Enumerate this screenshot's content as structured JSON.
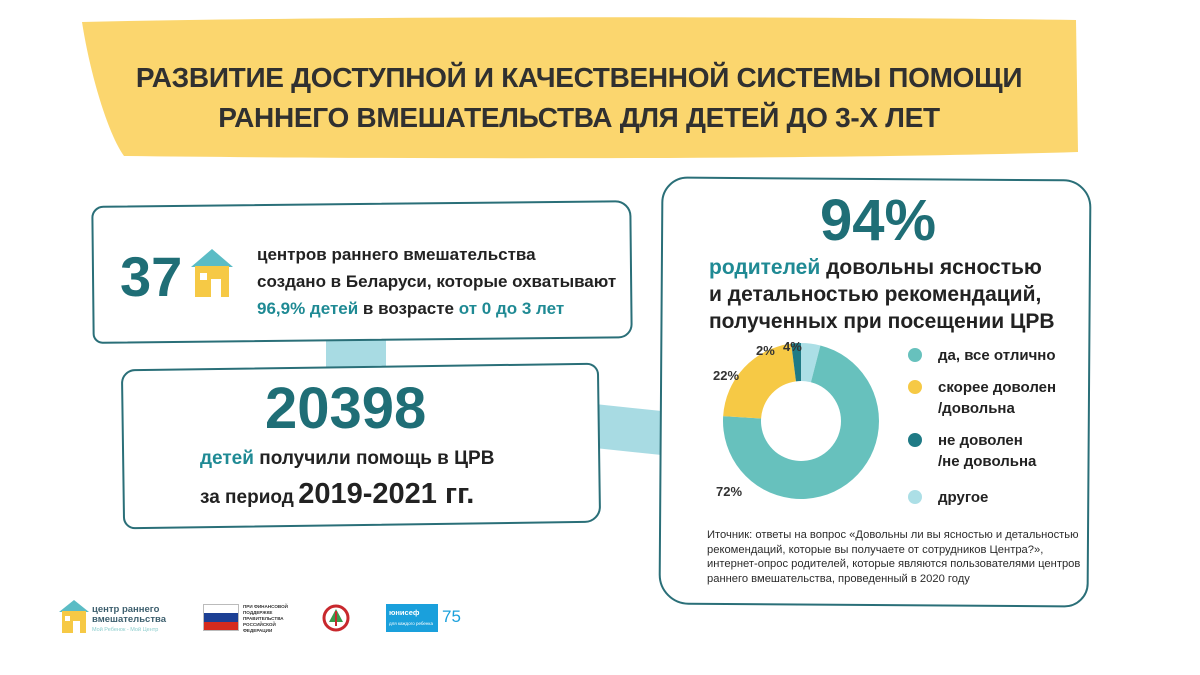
{
  "header": {
    "title_line1": "РАЗВИТИЕ ДОСТУПНОЙ И КАЧЕСТВЕННОЙ СИСТЕМЫ ПОМОЩИ",
    "title_line2": "РАННЕГО ВМЕШАТЕЛЬСТВА ДЛЯ ДЕТЕЙ ДО 3-Х ЛЕТ"
  },
  "stat_centers": {
    "number": "37",
    "line1": "центров раннего вмешательства",
    "line2": "создано в Беларуси, которые охватывают",
    "percent_children": "96,9% детей",
    "in_age": "в возрасте",
    "age_range": "от 0 до 3 лет"
  },
  "stat_children": {
    "number": "20398",
    "children_word": "детей",
    "got_help": "получили помощь в ЦРВ",
    "period_label": "за период",
    "period_value": "2019-2021 гг."
  },
  "survey": {
    "percent": "94%",
    "parents_word": "родителей",
    "line1_rest": "довольны ясностью",
    "line2": "и детальностью рекомендаций,",
    "line3": "полученных при посещении ЦРВ",
    "source": "Иточник: ответы на вопрос «Довольны ли вы ясностью и детальностью рекомендаций, которые вы получаете от сотрудников Центра?», интернет-опрос родителей, которые являются пользователями центров раннего вмешательства, проведенный в 2020 году"
  },
  "chart_data": {
    "type": "pie",
    "donut": true,
    "slices": [
      {
        "label": "да, все отлично",
        "value": 72,
        "value_label": "72%",
        "color": "#67c1bd"
      },
      {
        "label": "скорее доволен /довольна",
        "value": 22,
        "value_label": "22%",
        "color": "#f6c945"
      },
      {
        "label": "не доволен /не довольна",
        "value": 2,
        "value_label": "2%",
        "color": "#1f7a85"
      },
      {
        "label": "другое",
        "value": 4,
        "value_label": "4%",
        "color": "#acdfe6"
      }
    ],
    "legend": [
      {
        "line1": "да, все отлично",
        "line2": ""
      },
      {
        "line1": "скорее доволен",
        "line2": "/довольна"
      },
      {
        "line1": "не доволен",
        "line2": "/не довольна"
      },
      {
        "line1": "другое",
        "line2": ""
      }
    ]
  },
  "logos": {
    "center_name": "центр раннего вмешательства",
    "center_tagline": "Мой Ребенок - Мой Центр",
    "gov_text": "при финансовой поддержке правительства российской федерации",
    "unicef_name": "юнисеф",
    "unicef_sub": "для каждого ребенка",
    "unicef_anniv": "75"
  },
  "colors": {
    "banner": "#fbd66e",
    "teal_dark": "#1f6e76",
    "teal": "#1f8a94",
    "connector": "#a8dbe3"
  }
}
